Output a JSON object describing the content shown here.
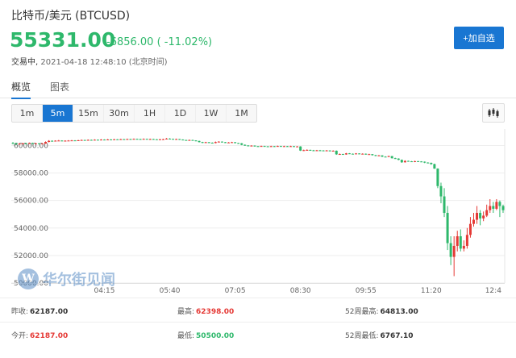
{
  "header": {
    "title": "比特币/美元 (BTCUSD)",
    "price": "55331.00",
    "change": "-6856.00 ( -11.02%)",
    "status_label": "交易中,",
    "timestamp": "2021-04-18 12:48:10 (北京时间)"
  },
  "follow_label": "+加自选",
  "tabs": [
    {
      "label": "概览",
      "active": true
    },
    {
      "label": "图表",
      "active": false
    }
  ],
  "periods": [
    {
      "label": "1m",
      "active": false
    },
    {
      "label": "5m",
      "active": true
    },
    {
      "label": "15m",
      "active": false
    },
    {
      "label": "30m",
      "active": false
    },
    {
      "label": "1H",
      "active": false
    },
    {
      "label": "1D",
      "active": false
    },
    {
      "label": "1W",
      "active": false
    },
    {
      "label": "1M",
      "active": false
    }
  ],
  "settings_icon": "candlestick-settings-icon",
  "watermark": {
    "logo": "W",
    "text": "华尔街见闻"
  },
  "colors": {
    "up": "#e53935",
    "down": "#2eb86b",
    "accent": "#1976d2"
  },
  "chart_data": {
    "type": "candlestick",
    "ylim": [
      50000,
      61200
    ],
    "yticks": [
      "60000.00",
      "58000.00",
      "56000.00",
      "54000.00",
      "52000.00",
      "50000.00"
    ],
    "ytick_values": [
      60000,
      58000,
      56000,
      54000,
      52000,
      50000
    ],
    "xticks": [
      "04:15",
      "05:40",
      "07:05",
      "08:30",
      "09:55",
      "11:20",
      "12:4"
    ],
    "xtick_index": [
      28,
      48,
      68,
      88,
      108,
      128,
      147
    ],
    "candles": [
      [
        60180,
        60160,
        60250,
        60100
      ],
      [
        60160,
        60090,
        60200,
        60050
      ],
      [
        60090,
        60130,
        60180,
        60060
      ],
      [
        60130,
        60150,
        60200,
        60100
      ],
      [
        60150,
        60140,
        60200,
        60100
      ],
      [
        60140,
        60170,
        60220,
        60110
      ],
      [
        60170,
        60130,
        60210,
        60100
      ],
      [
        60130,
        60150,
        60190,
        60100
      ],
      [
        60150,
        60110,
        60180,
        60080
      ],
      [
        60110,
        60140,
        60170,
        60090
      ],
      [
        60140,
        60260,
        60300,
        60120
      ],
      [
        60260,
        60340,
        60390,
        60230
      ],
      [
        60340,
        60320,
        60380,
        60300
      ],
      [
        60320,
        60350,
        60380,
        60300
      ],
      [
        60350,
        60360,
        60400,
        60330
      ],
      [
        60360,
        60330,
        60380,
        60310
      ],
      [
        60330,
        60350,
        60380,
        60320
      ],
      [
        60350,
        60360,
        60390,
        60330
      ],
      [
        60360,
        60370,
        60400,
        60340
      ],
      [
        60370,
        60350,
        60390,
        60330
      ],
      [
        60350,
        60380,
        60410,
        60340
      ],
      [
        60380,
        60400,
        60430,
        60360
      ],
      [
        60400,
        60380,
        60420,
        60360
      ],
      [
        60380,
        60410,
        60440,
        60370
      ],
      [
        60410,
        60400,
        60430,
        60380
      ],
      [
        60400,
        60420,
        60450,
        60390
      ],
      [
        60420,
        60410,
        60440,
        60390
      ],
      [
        60410,
        60430,
        60460,
        60400
      ],
      [
        60430,
        60420,
        60450,
        60400
      ],
      [
        60420,
        60440,
        60470,
        60410
      ],
      [
        60440,
        60430,
        60460,
        60410
      ],
      [
        60430,
        60450,
        60480,
        60420
      ],
      [
        60450,
        60440,
        60470,
        60420
      ],
      [
        60440,
        60460,
        60490,
        60430
      ],
      [
        60460,
        60450,
        60480,
        60430
      ],
      [
        60450,
        60470,
        60500,
        60440
      ],
      [
        60470,
        60460,
        60490,
        60440
      ],
      [
        60460,
        60480,
        60510,
        60450
      ],
      [
        60480,
        60470,
        60500,
        60450
      ],
      [
        60470,
        60460,
        60490,
        60440
      ],
      [
        60460,
        60480,
        60510,
        60450
      ],
      [
        60480,
        60460,
        60500,
        60440
      ],
      [
        60460,
        60470,
        60500,
        60450
      ],
      [
        60470,
        60450,
        60490,
        60430
      ],
      [
        60450,
        60440,
        60470,
        60420
      ],
      [
        60440,
        60450,
        60480,
        60430
      ],
      [
        60450,
        60460,
        60490,
        60440
      ],
      [
        60460,
        60500,
        60540,
        60440
      ],
      [
        60500,
        60480,
        60530,
        60460
      ],
      [
        60480,
        60460,
        60500,
        60440
      ],
      [
        60460,
        60470,
        60500,
        60450
      ],
      [
        60470,
        60430,
        60480,
        60400
      ],
      [
        60430,
        60400,
        60450,
        60380
      ],
      [
        60400,
        60380,
        60420,
        60360
      ],
      [
        60380,
        60400,
        60430,
        60360
      ],
      [
        60400,
        60370,
        60420,
        60350
      ],
      [
        60370,
        60330,
        60380,
        60300
      ],
      [
        60330,
        60250,
        60350,
        60220
      ],
      [
        60250,
        60200,
        60270,
        60170
      ],
      [
        60200,
        60240,
        60270,
        60180
      ],
      [
        60240,
        60200,
        60260,
        60170
      ],
      [
        60200,
        60180,
        60230,
        60150
      ],
      [
        60180,
        60250,
        60290,
        60160
      ],
      [
        60250,
        60280,
        60310,
        60230
      ],
      [
        60280,
        60240,
        60300,
        60220
      ],
      [
        60240,
        60200,
        60260,
        60180
      ],
      [
        60200,
        60220,
        60250,
        60180
      ],
      [
        60220,
        60240,
        60270,
        60200
      ],
      [
        60240,
        60180,
        60250,
        60150
      ],
      [
        60180,
        60160,
        60200,
        60130
      ],
      [
        60160,
        60050,
        60180,
        60020
      ],
      [
        60050,
        60000,
        60080,
        59970
      ],
      [
        60000,
        59970,
        60030,
        59940
      ],
      [
        59970,
        59990,
        60020,
        59950
      ],
      [
        59990,
        59950,
        60010,
        59920
      ],
      [
        59950,
        59930,
        59970,
        59900
      ],
      [
        59930,
        59960,
        59990,
        59910
      ],
      [
        59960,
        59940,
        59980,
        59910
      ],
      [
        59940,
        59920,
        59960,
        59890
      ],
      [
        59920,
        59950,
        59980,
        59900
      ],
      [
        59950,
        59930,
        59970,
        59900
      ],
      [
        59930,
        59960,
        59990,
        59910
      ],
      [
        59960,
        59940,
        59980,
        59920
      ],
      [
        59940,
        59950,
        59980,
        59920
      ],
      [
        59950,
        59940,
        59970,
        59920
      ],
      [
        59940,
        59950,
        59980,
        59920
      ],
      [
        59950,
        59920,
        59970,
        59900
      ],
      [
        59920,
        59930,
        59960,
        59900
      ],
      [
        59930,
        59630,
        59950,
        59600
      ],
      [
        59630,
        59660,
        59700,
        59600
      ],
      [
        59660,
        59680,
        59720,
        59640
      ],
      [
        59680,
        59650,
        59700,
        59620
      ],
      [
        59650,
        59620,
        59680,
        59590
      ],
      [
        59620,
        59650,
        59680,
        59600
      ],
      [
        59650,
        59640,
        59680,
        59610
      ],
      [
        59640,
        59620,
        59660,
        59590
      ],
      [
        59620,
        59640,
        59670,
        59600
      ],
      [
        59640,
        59600,
        59650,
        59570
      ],
      [
        59600,
        59620,
        59650,
        59580
      ],
      [
        59620,
        59360,
        59640,
        59320
      ],
      [
        59360,
        59380,
        59420,
        59330
      ],
      [
        59380,
        59350,
        59400,
        59320
      ],
      [
        59350,
        59430,
        59460,
        59330
      ],
      [
        59430,
        59400,
        59450,
        59380
      ],
      [
        59400,
        59380,
        59420,
        59350
      ],
      [
        59380,
        59420,
        59450,
        59360
      ],
      [
        59420,
        59390,
        59440,
        59370
      ],
      [
        59390,
        59400,
        59430,
        59370
      ],
      [
        59400,
        59360,
        59420,
        59330
      ],
      [
        59360,
        59370,
        59400,
        59330
      ],
      [
        59370,
        59300,
        59380,
        59270
      ],
      [
        59300,
        59250,
        59320,
        59220
      ],
      [
        59250,
        59280,
        59310,
        59230
      ],
      [
        59280,
        59190,
        59290,
        59160
      ],
      [
        59190,
        59180,
        59220,
        59150
      ],
      [
        59180,
        59230,
        59260,
        59160
      ],
      [
        59230,
        59080,
        59240,
        59050
      ],
      [
        59080,
        59050,
        59110,
        59020
      ],
      [
        59050,
        58960,
        59070,
        58930
      ],
      [
        58960,
        58780,
        58980,
        58740
      ],
      [
        58780,
        58880,
        58920,
        58760
      ],
      [
        58880,
        58850,
        58900,
        58820
      ],
      [
        58850,
        58820,
        58870,
        58800
      ],
      [
        58820,
        58860,
        58890,
        58790
      ],
      [
        58860,
        58840,
        58880,
        58810
      ],
      [
        58840,
        58820,
        58860,
        58790
      ],
      [
        58820,
        58760,
        58840,
        58720
      ],
      [
        58760,
        58740,
        58780,
        58700
      ],
      [
        58740,
        58650,
        58760,
        58600
      ],
      [
        58650,
        58320,
        58680,
        58300
      ],
      [
        58320,
        57050,
        58340,
        56900
      ],
      [
        57050,
        56300,
        57300,
        55800
      ],
      [
        56300,
        55100,
        56900,
        54800
      ],
      [
        55100,
        52900,
        55600,
        52400
      ],
      [
        52900,
        51900,
        53400,
        51300
      ],
      [
        51900,
        52700,
        53400,
        50500
      ],
      [
        52700,
        53400,
        53800,
        52300
      ],
      [
        53400,
        52500,
        53900,
        52300
      ],
      [
        52500,
        52700,
        53100,
        52300
      ],
      [
        52700,
        53500,
        54000,
        52500
      ],
      [
        53500,
        54300,
        54800,
        53300
      ],
      [
        54300,
        54600,
        55100,
        54100
      ],
      [
        54600,
        55100,
        55600,
        54300
      ],
      [
        55100,
        54700,
        55300,
        54200
      ],
      [
        54700,
        54900,
        55200,
        54500
      ],
      [
        54900,
        55300,
        55700,
        54800
      ],
      [
        55300,
        55600,
        56100,
        55100
      ],
      [
        55600,
        55400,
        55900,
        55100
      ],
      [
        55400,
        55900,
        56100,
        55300
      ],
      [
        55900,
        55600,
        56000,
        54800
      ],
      [
        55600,
        55300,
        55700,
        55100
      ]
    ]
  },
  "stats": {
    "rows": [
      [
        {
          "label": "昨收:",
          "value": "62187.00",
          "tone": ""
        },
        {
          "label": "最高:",
          "value": "62398.00",
          "tone": "red"
        },
        {
          "label": "52周最高:",
          "value": "64813.00",
          "tone": ""
        }
      ],
      [
        {
          "label": "今开:",
          "value": "62187.00",
          "tone": "red"
        },
        {
          "label": "最低:",
          "value": "50500.00",
          "tone": "green"
        },
        {
          "label": "52周最低:",
          "value": "6767.10",
          "tone": ""
        }
      ]
    ]
  }
}
